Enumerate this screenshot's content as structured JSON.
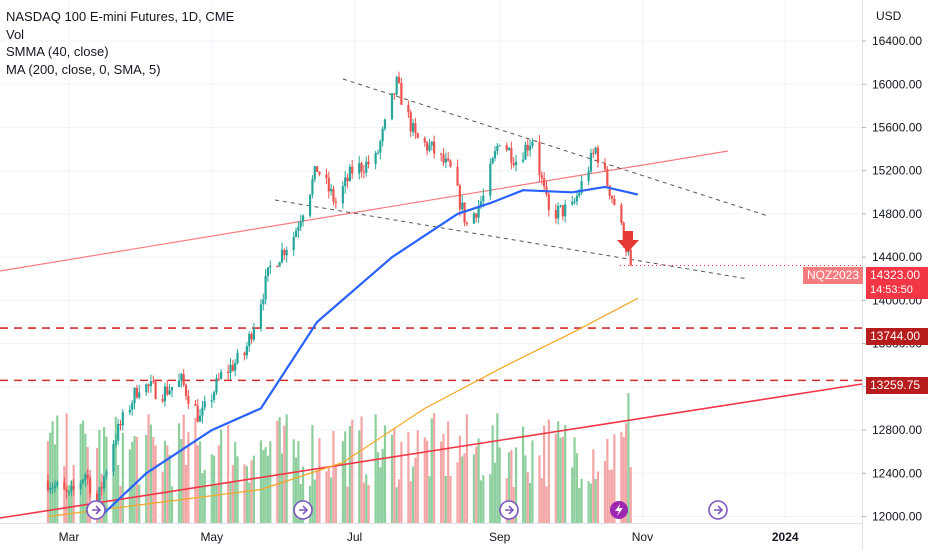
{
  "legend": {
    "title": "NASDAQ 100 E-mini Futures, 1D, CME",
    "vol": "Vol",
    "smma": "SMMA (40, close)",
    "ma": "MA (200, close, 0, SMA, 5)"
  },
  "currency": "USD",
  "price_tags": {
    "symbol": "NQZ2023",
    "last_price": "14323.00",
    "countdown": "14:53:50",
    "level1": "13744.00",
    "level2": "13259.75"
  },
  "colors": {
    "up": "#26a69a",
    "down": "#ef5350",
    "vol_up": "#8dcf9d",
    "vol_down": "#f4a6a6",
    "smma": "#2962ff",
    "ma": "#f5a623",
    "trend_red": "#f23645",
    "trend_pink": "#f77c80",
    "dashed_gray": "#555555",
    "hline": "#d32f2f",
    "event": "#7e57c2"
  },
  "chart_data": {
    "type": "candlestick",
    "y_axis": {
      "ticks": [
        12000,
        12400,
        12800,
        13200,
        13600,
        14000,
        14400,
        14800,
        15200,
        15600,
        16000,
        16400
      ],
      "ylim": [
        11970,
        16820
      ]
    },
    "x_axis": {
      "tick_labels": [
        "Mar",
        "May",
        "Jul",
        "Sep",
        "Nov",
        "2024"
      ]
    },
    "price_series_approx": [
      [
        "2023-02-20",
        12330
      ],
      [
        "2023-03-01",
        12180
      ],
      [
        "2023-03-08",
        12400
      ],
      [
        "2023-03-13",
        12120
      ],
      [
        "2023-03-20",
        12700
      ],
      [
        "2023-03-31",
        13220
      ],
      [
        "2023-04-10",
        13150
      ],
      [
        "2023-04-18",
        13250
      ],
      [
        "2023-04-26",
        12900
      ],
      [
        "2023-05-05",
        13300
      ],
      [
        "2023-05-15",
        13500
      ],
      [
        "2023-05-26",
        14300
      ],
      [
        "2023-06-05",
        14600
      ],
      [
        "2023-06-15",
        15220
      ],
      [
        "2023-06-23",
        14900
      ],
      [
        "2023-06-30",
        15200
      ],
      [
        "2023-07-10",
        15300
      ],
      [
        "2023-07-19",
        16000
      ],
      [
        "2023-07-27",
        15500
      ],
      [
        "2023-08-03",
        15400
      ],
      [
        "2023-08-11",
        15200
      ],
      [
        "2023-08-18",
        14700
      ],
      [
        "2023-08-25",
        14950
      ],
      [
        "2023-09-01",
        15500
      ],
      [
        "2023-09-08",
        15300
      ],
      [
        "2023-09-15",
        15500
      ],
      [
        "2023-09-22",
        14800
      ],
      [
        "2023-10-02",
        14850
      ],
      [
        "2023-10-12",
        15400
      ],
      [
        "2023-10-20",
        14900
      ],
      [
        "2023-10-25",
        14500
      ],
      [
        "2023-10-27",
        14323
      ]
    ],
    "smma_40_approx": [
      [
        "2023-03-14",
        11990
      ],
      [
        "2023-04-03",
        12400
      ],
      [
        "2023-05-01",
        12800
      ],
      [
        "2023-05-22",
        13000
      ],
      [
        "2023-06-15",
        13800
      ],
      [
        "2023-07-17",
        14400
      ],
      [
        "2023-08-14",
        14800
      ],
      [
        "2023-08-28",
        14900
      ],
      [
        "2023-09-11",
        15020
      ],
      [
        "2023-10-02",
        15000
      ],
      [
        "2023-10-16",
        15050
      ],
      [
        "2023-10-30",
        14980
      ]
    ],
    "ma_200_approx": [
      [
        "2023-02-20",
        12000
      ],
      [
        "2023-05-22",
        12250
      ],
      [
        "2023-06-26",
        12500
      ],
      [
        "2023-07-31",
        13000
      ],
      [
        "2023-09-04",
        13400
      ],
      [
        "2023-10-02",
        13700
      ],
      [
        "2023-10-30",
        14020
      ]
    ],
    "levels": [
      13744.0,
      13259.75
    ],
    "last_price": 14323.0,
    "legend_entries": [
      "Vol",
      "SMMA (40, close)",
      "MA (200, close, 0, SMA, 5)"
    ]
  }
}
